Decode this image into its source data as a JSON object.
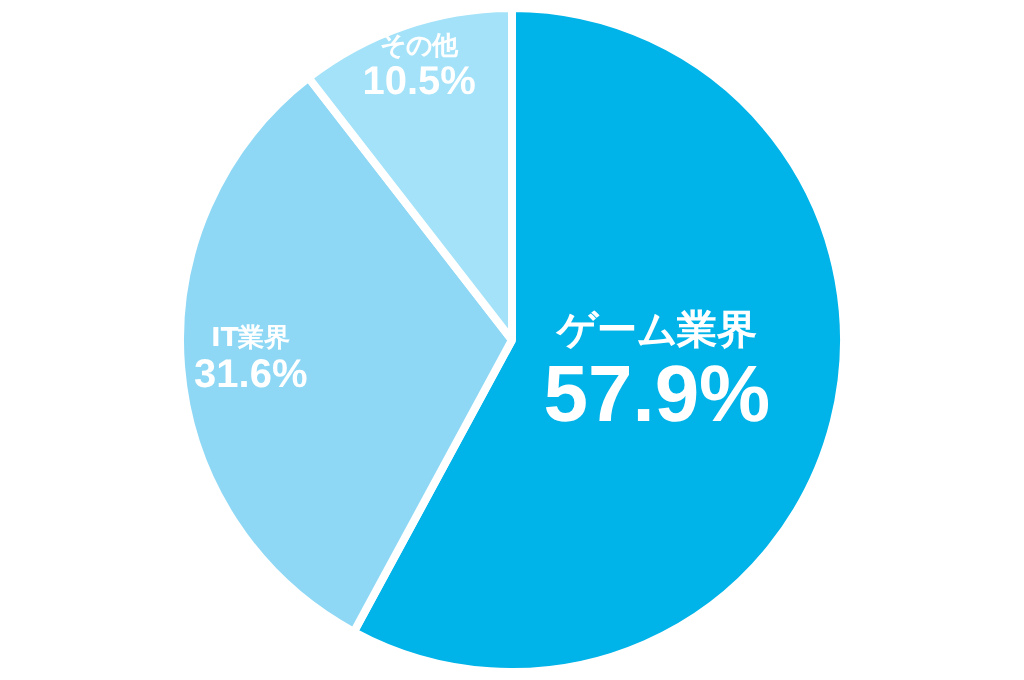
{
  "chart_data": {
    "type": "pie",
    "categories": [
      "ゲーム業界",
      "IT業界",
      "その他"
    ],
    "values": [
      57.9,
      31.6,
      10.5
    ],
    "value_labels": [
      "57.9%",
      "31.6%",
      "10.5%"
    ],
    "colors": [
      "#00b3e8",
      "#8fd8f5",
      "#a3e2f8"
    ],
    "legend": false
  }
}
